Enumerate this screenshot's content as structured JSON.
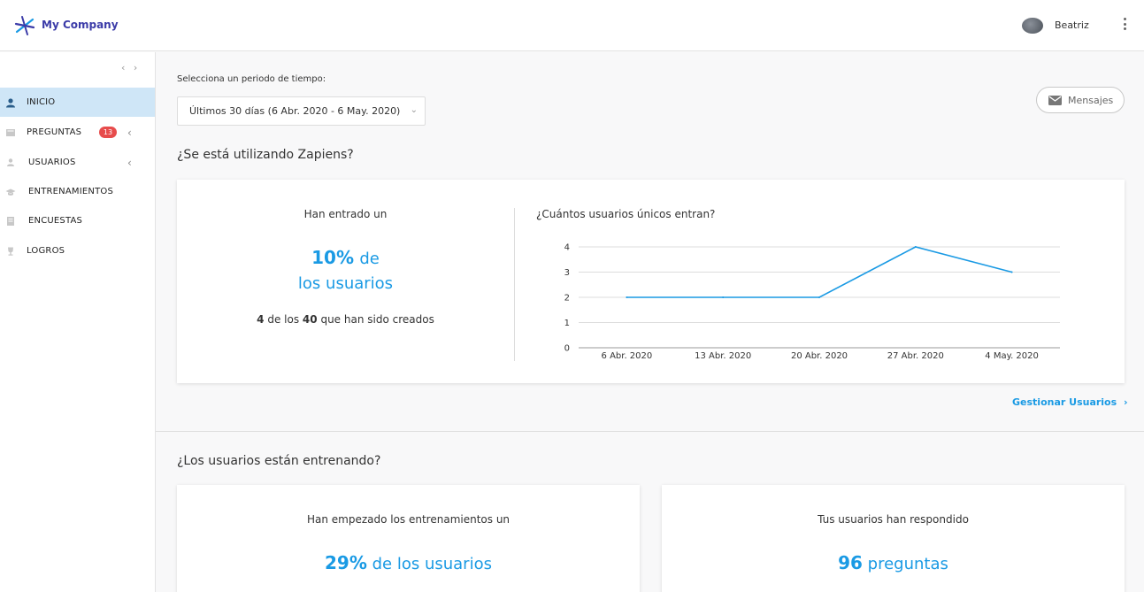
{
  "header": {
    "company": "My Company",
    "user": "Beatriz"
  },
  "sidebar": {
    "collapse_glyph": "‹ ›",
    "items": [
      {
        "label": "INICIO",
        "icon": "user-icon",
        "active": true
      },
      {
        "label": "PREGUNTAS",
        "icon": "book-icon",
        "badge": "13",
        "chevron": "‹"
      },
      {
        "label": "USUARIOS",
        "icon": "person-icon",
        "chevron": "‹"
      },
      {
        "label": "ENTRENAMIENTOS",
        "icon": "graduation-cap-icon"
      },
      {
        "label": "ENCUESTAS",
        "icon": "survey-icon"
      },
      {
        "label": "LOGROS",
        "icon": "trophy-icon"
      }
    ]
  },
  "main": {
    "period_label": "Selecciona un periodo de tiempo:",
    "period_value": "Últimos 30 días (6 Abr. 2020 - 6 May. 2020)",
    "messages_button": "Mensajes",
    "section1_title": "¿Se está utilizando Zapiens?",
    "card1": {
      "intro": "Han entrado un",
      "percent": "10%",
      "percent_suffix": "de",
      "percent_line2": "los usuarios",
      "count": "4",
      "count_mid": "de los",
      "total": "40",
      "count_suffix": "que han sido creados"
    },
    "gestionar_link": "Gestionar Usuarios",
    "section2_title": "¿Los usuarios están entrenando?",
    "card2": {
      "intro": "Han empezado los entrenamientos un",
      "percent": "29%",
      "suffix": "de los usuarios"
    },
    "card3": {
      "intro": "Tus usuarios han respondido",
      "number": "96",
      "suffix": "preguntas"
    }
  },
  "chart_data": {
    "type": "line",
    "title": "¿Cuántos usuarios únicos entran?",
    "categories": [
      "6 Abr. 2020",
      "13 Abr. 2020",
      "20 Abr. 2020",
      "27 Abr. 2020",
      "4 May. 2020"
    ],
    "values": [
      2,
      2,
      2,
      4,
      3
    ],
    "ylim": [
      0,
      4
    ],
    "yticks": [
      0,
      1,
      2,
      3,
      4
    ],
    "grid": true,
    "color": "#1a9ae4"
  }
}
